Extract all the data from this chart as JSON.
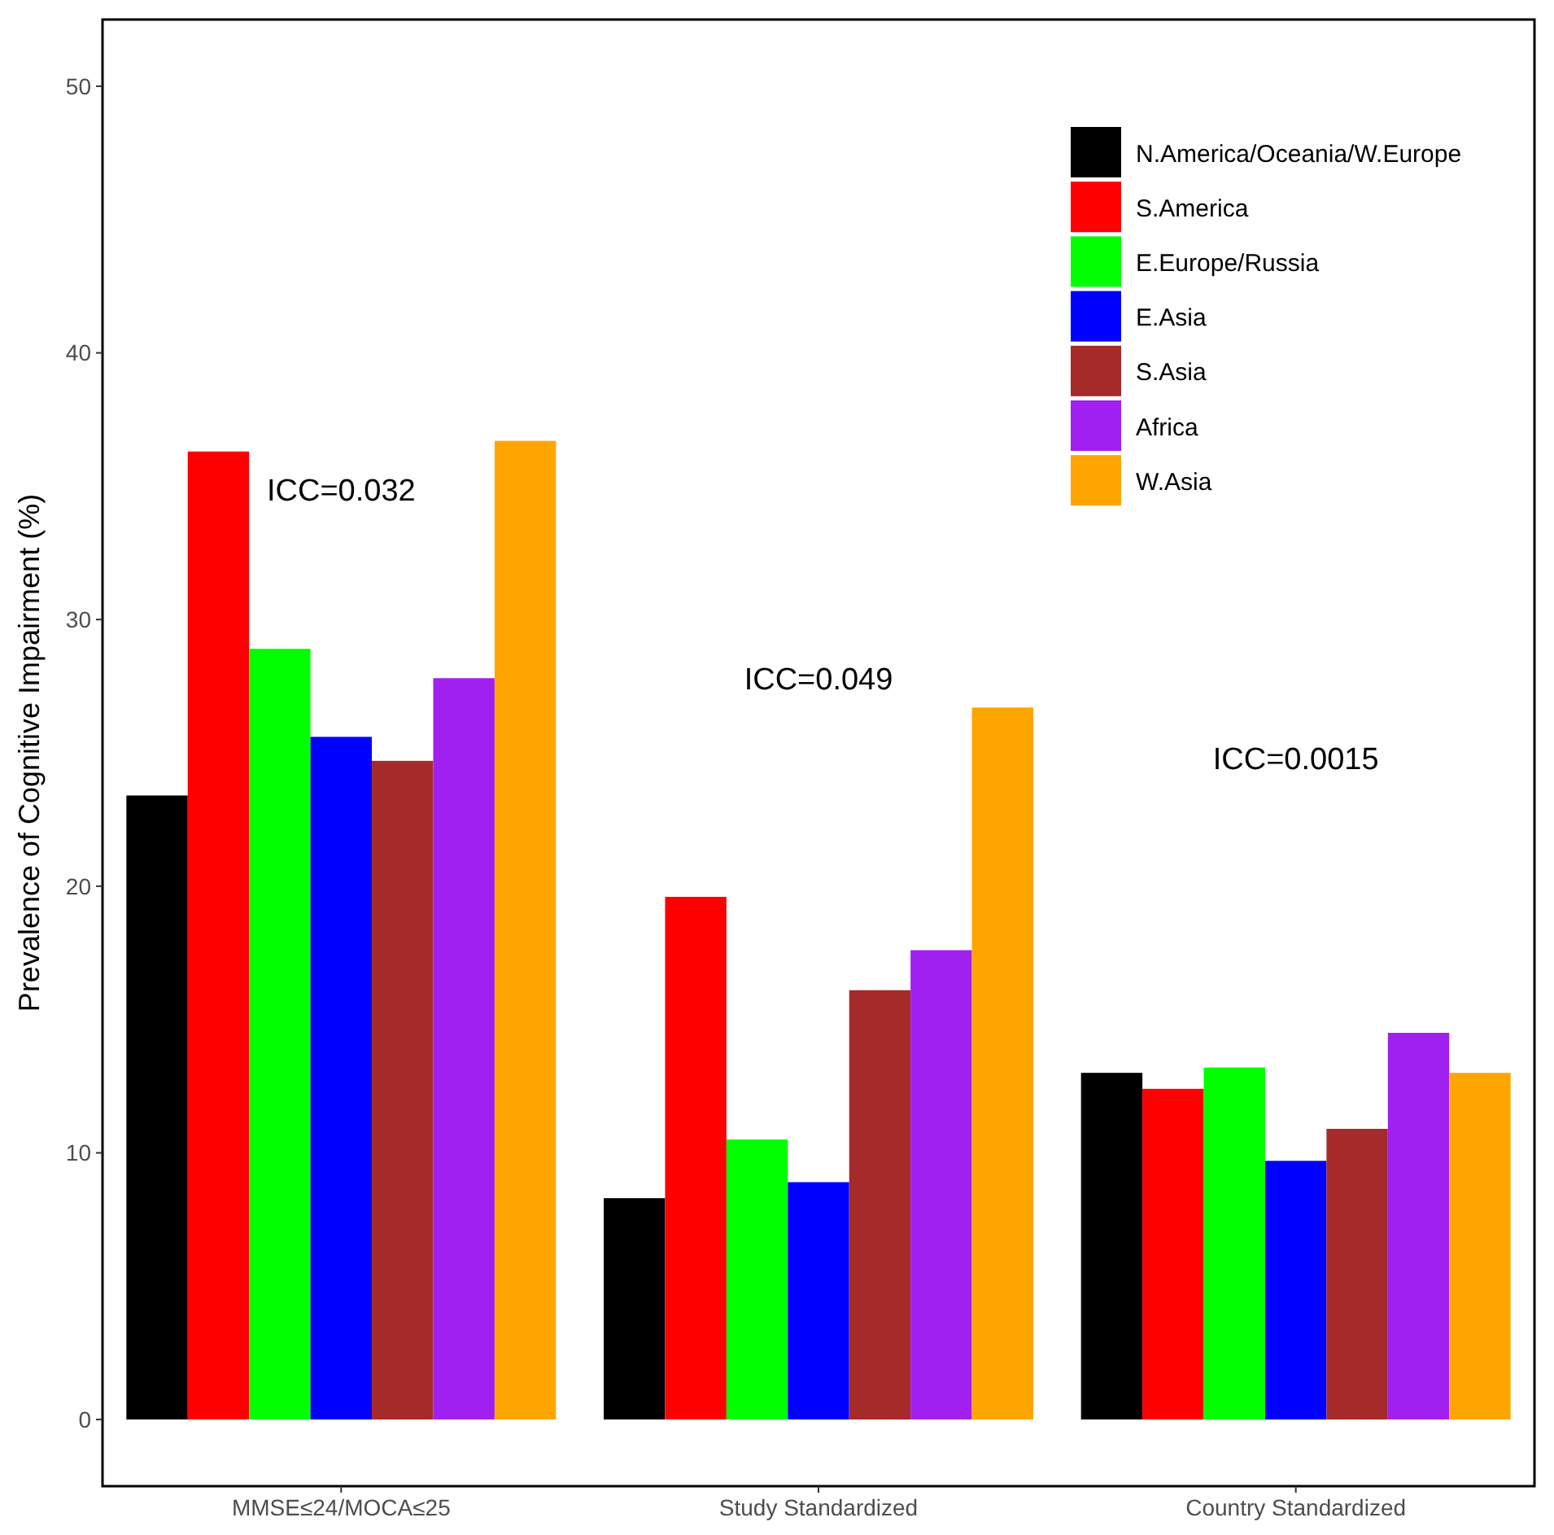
{
  "chart_data": {
    "type": "bar",
    "ylabel": "Prevalence of Cognitive Impairment (%)",
    "categories": [
      "MMSE≤24/MOCA≤25",
      "Study Standardized",
      "Country Standardized"
    ],
    "series": [
      {
        "name": "N.America/Oceania/W.Europe",
        "color": "#000000",
        "values": [
          23.4,
          8.3,
          13.0
        ]
      },
      {
        "name": "S.America",
        "color": "#ff0000",
        "values": [
          36.3,
          19.6,
          12.4
        ]
      },
      {
        "name": "E.Europe/Russia",
        "color": "#00ff00",
        "values": [
          28.9,
          10.5,
          13.2
        ]
      },
      {
        "name": "E.Asia",
        "color": "#0000ff",
        "values": [
          25.6,
          8.9,
          9.7
        ]
      },
      {
        "name": "S.Asia",
        "color": "#a52a2a",
        "values": [
          24.7,
          16.1,
          10.9
        ]
      },
      {
        "name": "Africa",
        "color": "#a020f0",
        "values": [
          27.8,
          17.6,
          14.5
        ]
      },
      {
        "name": "W.Asia",
        "color": "#ffa500",
        "values": [
          36.7,
          26.7,
          13.0
        ]
      }
    ],
    "ylim": [
      -2.5,
      52.5
    ],
    "yticks": [
      0,
      10,
      20,
      30,
      40,
      50
    ],
    "grid": false,
    "legend": "top right",
    "annotations": [
      "ICC=0.032",
      "ICC=0.049",
      "ICC=0.0015"
    ]
  }
}
